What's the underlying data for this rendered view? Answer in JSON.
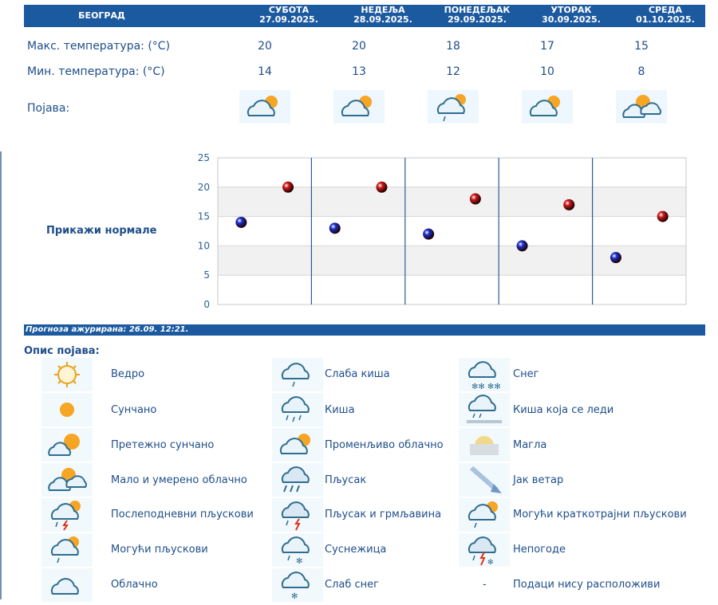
{
  "city": "БЕОГРАД",
  "days": [
    {
      "name": "СУБОТА",
      "date": "27.09.2025.",
      "max": "20",
      "min": "14",
      "icon": "partly-cloudy-icon"
    },
    {
      "name": "НЕДЕЉА",
      "date": "28.09.2025.",
      "max": "20",
      "min": "13",
      "icon": "partly-cloudy-icon"
    },
    {
      "name": "ПОНЕДЕЉАК",
      "date": "29.09.2025.",
      "max": "18",
      "min": "12",
      "icon": "possible-showers-icon"
    },
    {
      "name": "УТОРАК",
      "date": "30.09.2025.",
      "max": "17",
      "min": "10",
      "icon": "partly-cloudy-icon"
    },
    {
      "name": "СРЕДА",
      "date": "01.10.2025.",
      "max": "15",
      "min": "8",
      "icon": "small-moderate-cloudy-icon"
    }
  ],
  "labels": {
    "max": "Макс. температура: (°C)",
    "min": "Мин. температура: (°C)",
    "phenomenon": "Појава:"
  },
  "show_normals": "Прикажи нормале",
  "updated": "Прогноза ажурирана:  26.09.  12:21.",
  "legend_title": "Опис појава:",
  "legend": [
    {
      "label": "Ведро",
      "icon": "clear-sun-icon"
    },
    {
      "label": "Слаба киша",
      "icon": "light-rain-icon"
    },
    {
      "label": "Снег",
      "icon": "snow-icon"
    },
    {
      "label": "Сунчано",
      "icon": "sunny-icon"
    },
    {
      "label": "Киша",
      "icon": "rain-icon"
    },
    {
      "label": "Киша која се леди",
      "icon": "freezing-rain-icon"
    },
    {
      "label": "Претежно сунчано",
      "icon": "mostly-sunny-icon"
    },
    {
      "label": "Променљиво облачно",
      "icon": "variable-cloudy-icon"
    },
    {
      "label": "Магла",
      "icon": "fog-icon"
    },
    {
      "label": "Мало и умерено облачно",
      "icon": "small-moderate-cloudy-icon"
    },
    {
      "label": "Пљусак",
      "icon": "shower-icon"
    },
    {
      "label": "Јак ветар",
      "icon": "strong-wind-icon"
    },
    {
      "label": "Послеподневни пљускови",
      "icon": "afternoon-showers-icon"
    },
    {
      "label": "Пљусак и грмљавина",
      "icon": "thunder-shower-icon"
    },
    {
      "label": "Могући краткотрајни пљускови",
      "icon": "possible-brief-showers-icon"
    },
    {
      "label": "Могући пљускови",
      "icon": "possible-showers-icon"
    },
    {
      "label": "Суснежица",
      "icon": "sleet-icon"
    },
    {
      "label": "Непогоде",
      "icon": "storm-icon"
    },
    {
      "label": "Облачно",
      "icon": "cloudy-icon"
    },
    {
      "label": "Слаб снег",
      "icon": "light-snow-icon"
    },
    {
      "label": "Подаци нису расположиви",
      "icon": "no-data-dash",
      "dash": "-"
    }
  ],
  "chart_data": {
    "type": "scatter",
    "categories": [
      "27.09.2025.",
      "28.09.2025.",
      "29.09.2025.",
      "30.09.2025.",
      "01.10.2025."
    ],
    "series": [
      {
        "values": [
          14,
          13,
          12,
          10,
          8
        ],
        "color": "#1a2fd0"
      },
      {
        "values": [
          20,
          20,
          18,
          17,
          15
        ],
        "color": "#d01a1a"
      }
    ],
    "ylim": [
      0,
      25
    ],
    "yticks": [
      0,
      5,
      10,
      15,
      20,
      25
    ],
    "grid": true
  }
}
